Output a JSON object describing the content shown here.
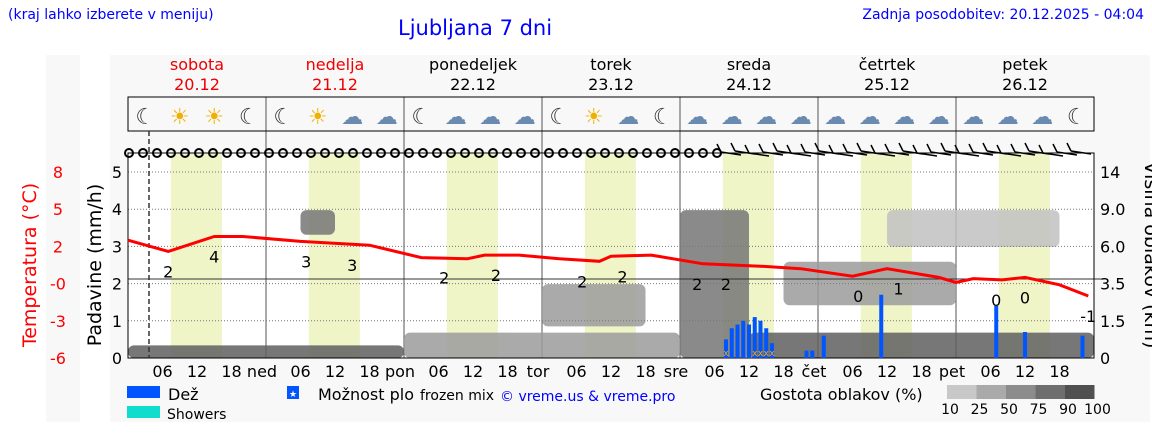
{
  "header": {
    "hint": "(kraj lahko izberete v meniju)",
    "title": "Ljubljana 7 dni",
    "updated": "Zadnja posodobitev: 20.12.2025 - 04:04"
  },
  "days": [
    {
      "name": "sobota",
      "date": "20.12",
      "weekend": true
    },
    {
      "name": "nedelja",
      "date": "21.12",
      "weekend": true
    },
    {
      "name": "ponedeljek",
      "date": "22.12",
      "weekend": false
    },
    {
      "name": "torek",
      "date": "23.12",
      "weekend": false
    },
    {
      "name": "sreda",
      "date": "24.12",
      "weekend": false
    },
    {
      "name": "četrtek",
      "date": "25.12",
      "weekend": false
    },
    {
      "name": "petek",
      "date": "26.12",
      "weekend": false
    }
  ],
  "colors": {
    "temperature": "#ff0000",
    "rain": "#0055ff",
    "showers": "#11ddcc",
    "snow_mix": "#ffaa00",
    "daylight": "#f0f5c8",
    "text_blue": "#0000ff"
  },
  "chart_data": {
    "type": "line",
    "xlabel_ticks": [
      "06",
      "12",
      "18",
      "ned",
      "06",
      "12",
      "18",
      "pon",
      "06",
      "12",
      "18",
      "tor",
      "06",
      "12",
      "18",
      "sre",
      "06",
      "12",
      "18",
      "čet",
      "06",
      "12",
      "18",
      "pet",
      "06",
      "12",
      "18"
    ],
    "y_left_precip": {
      "label": "Padavine (mm/h)",
      "ticks": [
        "0",
        "1",
        "2",
        "3",
        "4",
        "5"
      ],
      "range": [
        0,
        5.5
      ]
    },
    "y_left_temp": {
      "label": "Temperatura (°C)",
      "ticks": [
        "8",
        "5",
        "2",
        "-0",
        "-3",
        "-6"
      ],
      "range": [
        -6,
        9.5
      ]
    },
    "y_right": {
      "label": "Višina oblakov (km)",
      "ticks": [
        "14",
        "9.0",
        "6.0",
        "3.5",
        "1.5",
        "0"
      ]
    },
    "current_time": "20.12 04:00",
    "temperature": [
      [
        "20.12 00",
        3.5
      ],
      [
        "20.12 07",
        2.6
      ],
      [
        "20.12 15",
        3.8
      ],
      [
        "20.12 20",
        3.8
      ],
      [
        "21.12 06",
        3.4
      ],
      [
        "21.12 18",
        3.1
      ],
      [
        "22.12 03",
        2.1
      ],
      [
        "22.12 11",
        2.0
      ],
      [
        "22.12 14",
        2.3
      ],
      [
        "22.12 20",
        2.3
      ],
      [
        "23.12 03",
        2.0
      ],
      [
        "23.12 10",
        1.8
      ],
      [
        "23.12 12",
        2.2
      ],
      [
        "23.12 19",
        2.3
      ],
      [
        "24.12 04",
        1.6
      ],
      [
        "24.12 14",
        1.4
      ],
      [
        "24.12 21",
        1.2
      ],
      [
        "25.12 06",
        0.6
      ],
      [
        "25.12 12",
        1.2
      ],
      [
        "25.12 21",
        0.5
      ],
      [
        "26.12 00",
        0.1
      ],
      [
        "26.12 03",
        0.4
      ],
      [
        "26.12 08",
        0.3
      ],
      [
        "26.12 12",
        0.5
      ],
      [
        "26.12 18",
        -0.1
      ],
      [
        "26.12 23",
        -1.0
      ]
    ],
    "temp_labels": [
      [
        "20.12 07",
        "2"
      ],
      [
        "20.12 15",
        "4"
      ],
      [
        "21.12 07",
        "3"
      ],
      [
        "21.12 15",
        "3"
      ],
      [
        "22.12 07",
        "2"
      ],
      [
        "22.12 16",
        "2"
      ],
      [
        "23.12 07",
        "2"
      ],
      [
        "23.12 14",
        "2"
      ],
      [
        "24.12 03",
        "2"
      ],
      [
        "24.12 08",
        "2"
      ],
      [
        "25.12 07",
        "0"
      ],
      [
        "25.12 14",
        "1"
      ],
      [
        "26.12 07",
        "0"
      ],
      [
        "26.12 12",
        "0"
      ],
      [
        "26.12 23",
        "-1"
      ]
    ],
    "precip": [
      [
        "24.12 08",
        0.5,
        "mix"
      ],
      [
        "24.12 09",
        0.8,
        "rain"
      ],
      [
        "24.12 10",
        0.9,
        "rain"
      ],
      [
        "24.12 11",
        1.0,
        "rain"
      ],
      [
        "24.12 12",
        0.9,
        "rain"
      ],
      [
        "24.12 13",
        1.1,
        "mix"
      ],
      [
        "24.12 14",
        1.0,
        "mix"
      ],
      [
        "24.12 15",
        0.8,
        "mix"
      ],
      [
        "24.12 16",
        0.4,
        "mix"
      ],
      [
        "24.12 22",
        0.2,
        "rain"
      ],
      [
        "24.12 23",
        0.2,
        "rain"
      ],
      [
        "25.12 01",
        0.6,
        "rain"
      ],
      [
        "25.12 11",
        1.7,
        "rain"
      ],
      [
        "26.12 07",
        1.4,
        "rain"
      ],
      [
        "26.12 12",
        0.7,
        "rain"
      ],
      [
        "26.12 22",
        0.6,
        "rain"
      ]
    ],
    "clouds": [
      [
        "20.12 00",
        "22.12 00",
        0,
        0.6,
        90
      ],
      [
        "22.12 00",
        "24.12 00",
        0,
        1.2,
        50
      ],
      [
        "24.12 00",
        "24.12 12",
        0,
        9,
        75
      ],
      [
        "24.12 12",
        "26.12 24",
        0,
        1.2,
        90
      ],
      [
        "23.12 00",
        "23.12 18",
        1.5,
        3.5,
        50
      ],
      [
        "24.12 18",
        "26.12 00",
        2.5,
        5,
        50
      ],
      [
        "21.12 06",
        "21.12 12",
        7,
        9,
        75
      ],
      [
        "25.12 12",
        "26.12 18",
        6,
        9,
        25
      ]
    ],
    "icons": [
      "moon-cloud",
      "sun",
      "sun",
      "moon-fog",
      "moon",
      "sun",
      "cloud",
      "cloud",
      "moon",
      "cloud",
      "cloud",
      "cloud",
      "moon",
      "sun",
      "cloud",
      "moon",
      "cloud",
      "cloud",
      "cloud",
      "cloud",
      "cloud",
      "cloud",
      "cloud",
      "cloud",
      "cloud",
      "cloud",
      "cloud",
      "moon-snow"
    ],
    "legend": {
      "rain": "Dež",
      "snow": "Možnost plo",
      "frozen": "frozen mix",
      "showers": "Showers",
      "credit": "© vreme.us & vreme.pro",
      "cloud_density": "Gostota oblakov (%)",
      "density_ticks": [
        "10",
        "25",
        "50",
        "75",
        "90",
        "100"
      ]
    }
  }
}
